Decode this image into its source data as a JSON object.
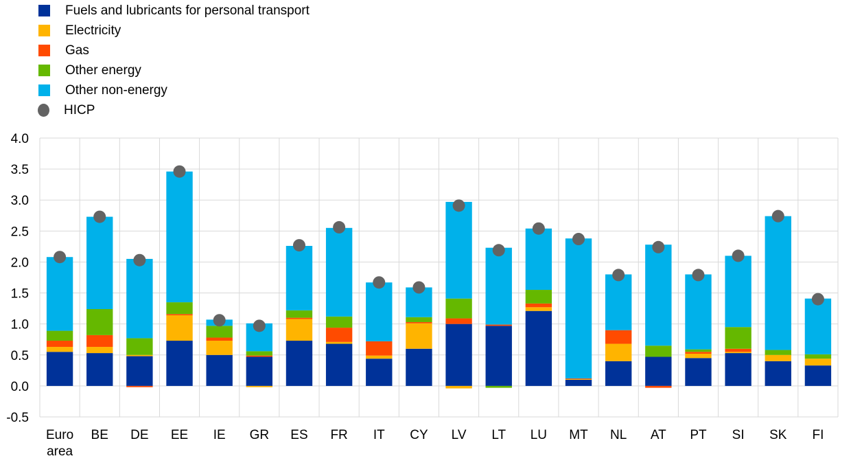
{
  "chart_data": {
    "type": "bar",
    "stacked": true,
    "title": "",
    "xlabel": "",
    "ylabel": "",
    "ylim": [
      -0.5,
      4.0
    ],
    "yticks": [
      "-0.5",
      "0.0",
      "0.5",
      "1.0",
      "1.5",
      "2.0",
      "2.5",
      "3.0",
      "3.5",
      "4.0"
    ],
    "grid": true,
    "legend_position": "top-left",
    "categories": [
      "Euro area",
      "BE",
      "DE",
      "EE",
      "IE",
      "GR",
      "ES",
      "FR",
      "IT",
      "CY",
      "LV",
      "LT",
      "LU",
      "MT",
      "NL",
      "AT",
      "PT",
      "SI",
      "SK",
      "FI"
    ],
    "series": [
      {
        "name": "Fuels and lubricants for personal transport",
        "color": "#003299",
        "values": [
          0.55,
          0.53,
          0.48,
          0.73,
          0.5,
          0.47,
          0.73,
          0.68,
          0.44,
          0.6,
          1.0,
          0.97,
          1.21,
          0.1,
          0.4,
          0.47,
          0.45,
          0.53,
          0.4,
          0.33
        ]
      },
      {
        "name": "Electricity",
        "color": "#FFB400",
        "values": [
          0.08,
          0.1,
          0.02,
          0.41,
          0.23,
          -0.02,
          0.35,
          0.03,
          0.05,
          0.41,
          -0.04,
          0.0,
          0.06,
          0.01,
          0.28,
          0.0,
          0.07,
          0.02,
          0.1,
          0.11
        ]
      },
      {
        "name": "Gas",
        "color": "#FF4B00",
        "values": [
          0.1,
          0.19,
          -0.02,
          0.02,
          0.05,
          0.02,
          0.02,
          0.23,
          0.23,
          0.02,
          0.09,
          0.02,
          0.06,
          0.01,
          0.22,
          -0.03,
          0.03,
          0.05,
          0.0,
          0.0
        ]
      },
      {
        "name": "Other energy",
        "color": "#65B800",
        "values": [
          0.16,
          0.42,
          0.27,
          0.19,
          0.19,
          0.07,
          0.12,
          0.18,
          0.0,
          0.08,
          0.32,
          -0.03,
          0.22,
          0.0,
          0.0,
          0.18,
          0.04,
          0.35,
          0.08,
          0.07
        ]
      },
      {
        "name": "Other non-energy",
        "color": "#00B1EA",
        "values": [
          1.19,
          1.49,
          1.28,
          2.11,
          0.1,
          0.45,
          1.04,
          1.43,
          0.95,
          0.48,
          1.56,
          1.24,
          0.99,
          2.26,
          0.9,
          1.63,
          1.21,
          1.15,
          2.16,
          0.9
        ]
      }
    ],
    "hicp": {
      "name": "HICP",
      "color": "#636363",
      "values": [
        2.08,
        2.73,
        2.03,
        3.46,
        1.06,
        0.97,
        2.27,
        2.56,
        1.67,
        1.59,
        2.91,
        2.19,
        2.54,
        2.37,
        1.79,
        2.24,
        1.79,
        2.1,
        2.74,
        1.4
      ]
    }
  }
}
